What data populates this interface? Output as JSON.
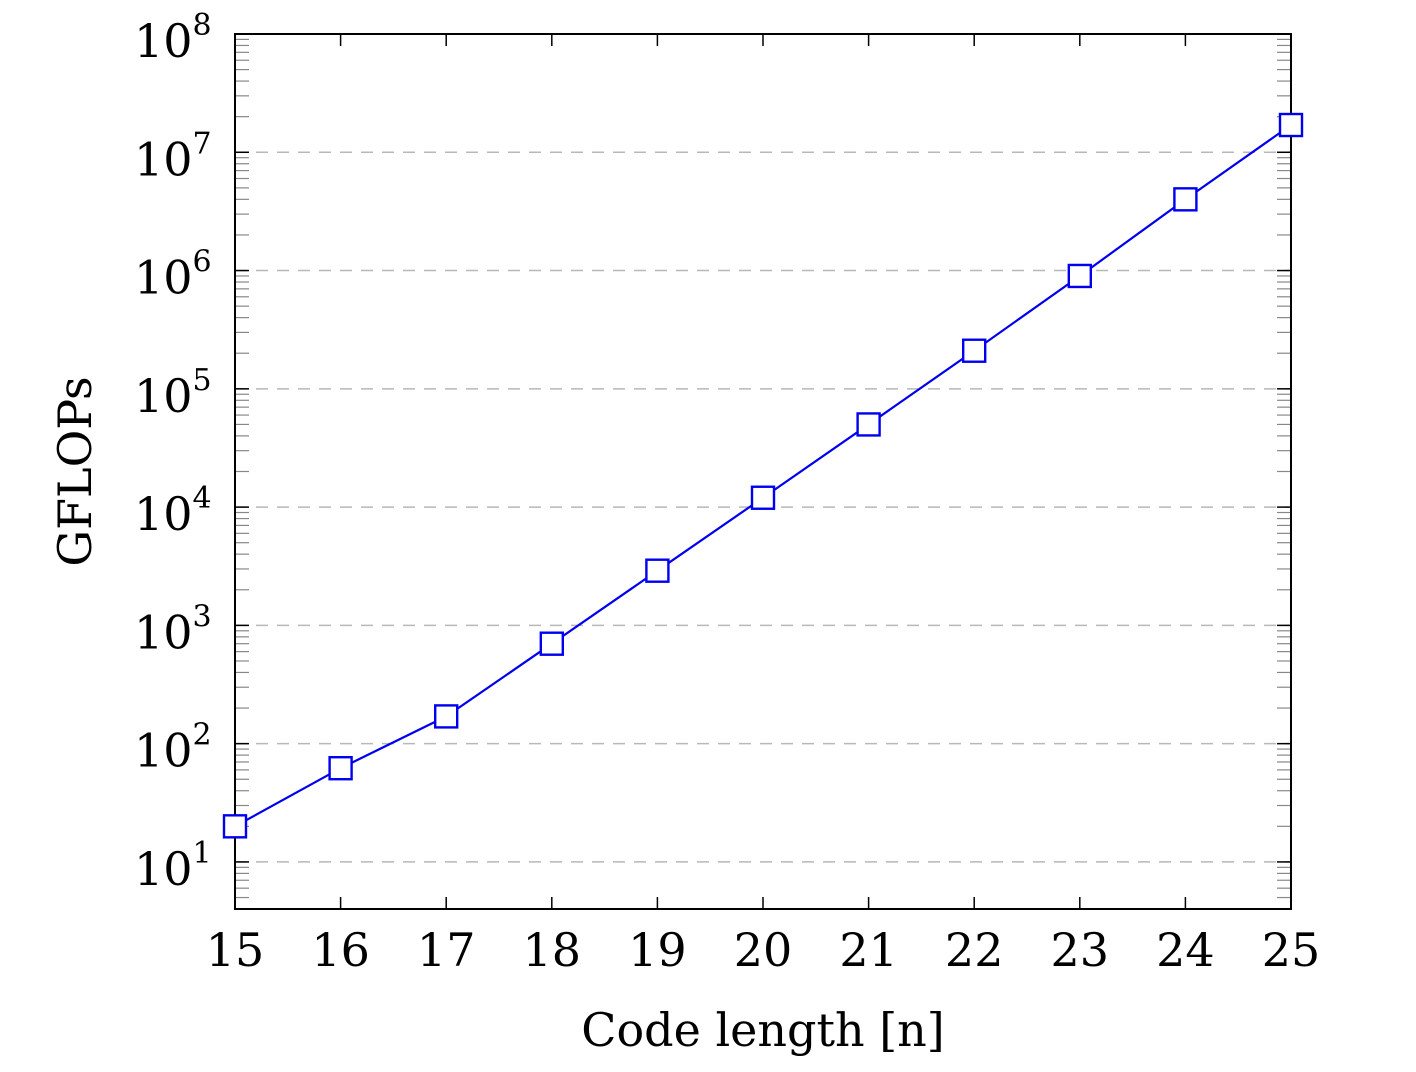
{
  "chart_data": {
    "type": "line",
    "xlabel": "Code length [n]",
    "ylabel": "GFLOPs",
    "y_scale": "log",
    "xlim": [
      15,
      25
    ],
    "ylim": [
      4,
      100000000
    ],
    "grid": "horizontal dashed at decades",
    "x_ticks": [
      "15",
      "16",
      "17",
      "18",
      "19",
      "20",
      "21",
      "22",
      "23",
      "24",
      "25"
    ],
    "y_ticks": [
      {
        "base": "10",
        "exp": "1"
      },
      {
        "base": "10",
        "exp": "2"
      },
      {
        "base": "10",
        "exp": "3"
      },
      {
        "base": "10",
        "exp": "4"
      },
      {
        "base": "10",
        "exp": "5"
      },
      {
        "base": "10",
        "exp": "6"
      },
      {
        "base": "10",
        "exp": "7"
      },
      {
        "base": "10",
        "exp": "8"
      }
    ],
    "series": [
      {
        "color": "#0000ee",
        "marker": "square",
        "x": [
          15,
          16,
          17,
          18,
          19,
          20,
          21,
          22,
          23,
          24,
          25
        ],
        "y": [
          20,
          62,
          170,
          700,
          2900,
          12000,
          50000,
          210000,
          900000,
          4000000,
          17000000
        ]
      }
    ]
  }
}
